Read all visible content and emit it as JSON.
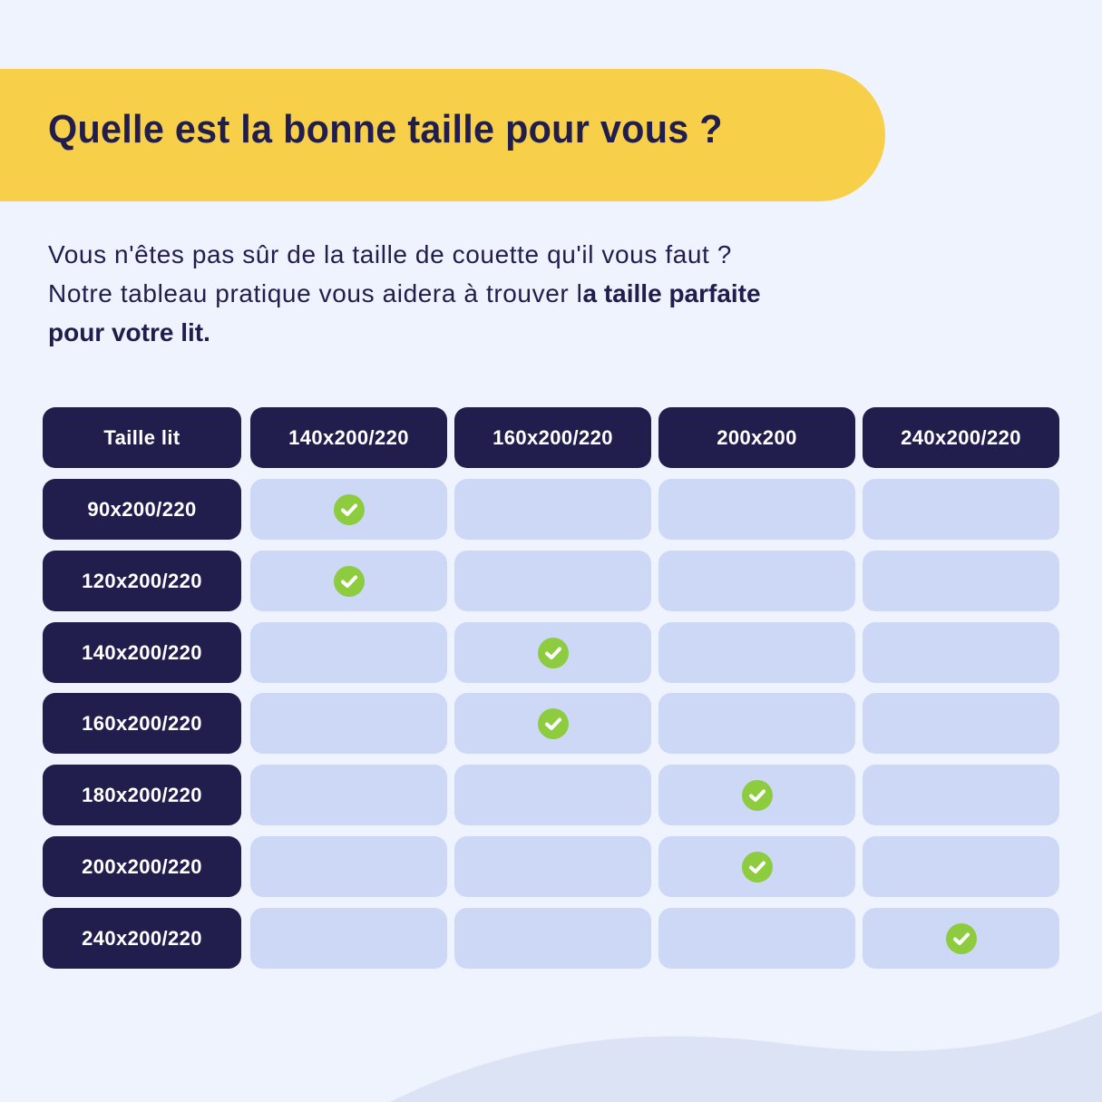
{
  "title": "Quelle est la bonne taille pour vous ?",
  "intro": {
    "line1": "Vous n'êtes pas sûr de la taille de couette qu'il vous faut ?",
    "line2_regular": "Notre tableau pratique vous aidera à trouver l",
    "line2_bold": "a taille parfaite",
    "line3_bold": "pour votre lit."
  },
  "colors": {
    "background": "#eef3fd",
    "banner": "#f7cf48",
    "navy": "#211e4e",
    "cell": "#ccd8f5",
    "check": "#8dcb3f"
  },
  "table": {
    "corner": "Taille lit",
    "columns": [
      "140x200/220",
      "160x200/220",
      "200x200",
      "240x200/220"
    ],
    "rows": [
      {
        "label": "90x200/220",
        "match": 0
      },
      {
        "label": "120x200/220",
        "match": 0
      },
      {
        "label": "140x200/220",
        "match": 1
      },
      {
        "label": "160x200/220",
        "match": 1
      },
      {
        "label": "180x200/220",
        "match": 2
      },
      {
        "label": "200x200/220",
        "match": 2
      },
      {
        "label": "240x200/220",
        "match": 3
      }
    ],
    "check_icon": "check-circle-icon"
  }
}
